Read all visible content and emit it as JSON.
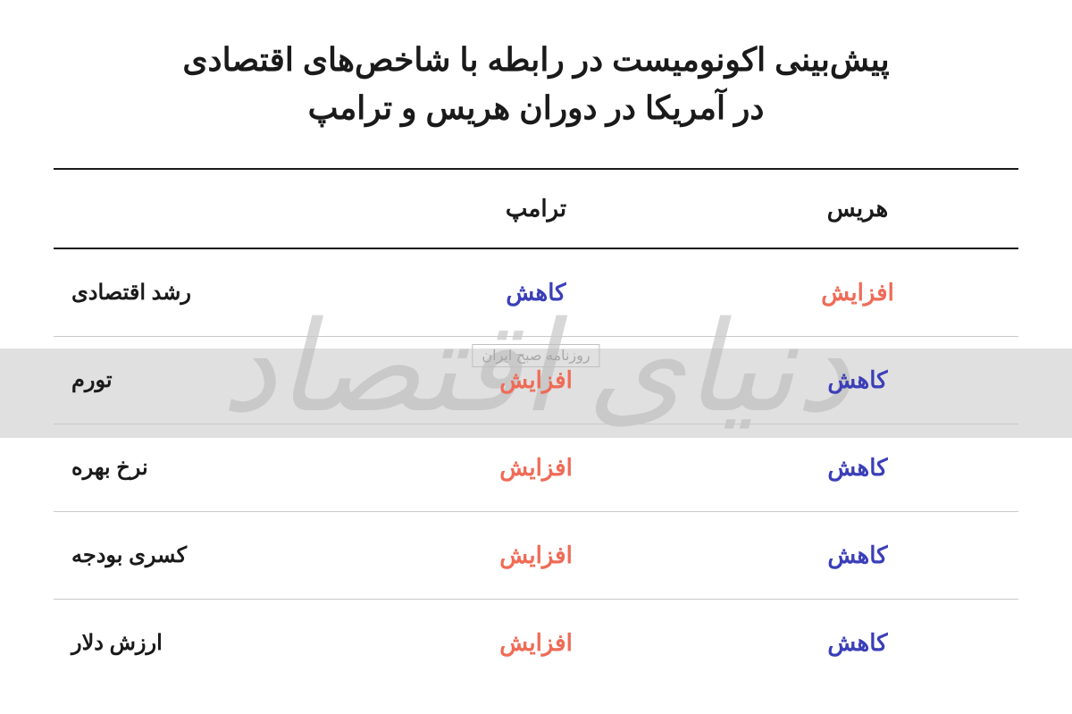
{
  "title_line1": "پیش‌بینی اکونومیست در رابطه با شاخص‌های اقتصادی",
  "title_line2": "در آمریکا در دوران هریس و ترامپ",
  "headers": {
    "harris": "هریس",
    "trump": "ترامپ",
    "label": ""
  },
  "value_labels": {
    "increase": "افزایش",
    "decrease": "کاهش"
  },
  "colors": {
    "increase": "#ef6b57",
    "decrease": "#3b3fb8",
    "text": "#1a1a1a",
    "border_thick": "#1a1a1a",
    "border_thin": "#c9c9c9",
    "watermark_bg": "#e0e0e0",
    "watermark_text": "#b8b8b8",
    "background": "#ffffff"
  },
  "typography": {
    "title_fontsize": 36,
    "header_fontsize": 26,
    "cell_fontsize": 26,
    "label_fontsize": 24,
    "weight": 900
  },
  "rows": [
    {
      "label": "رشد اقتصادی",
      "harris": "increase",
      "trump": "decrease"
    },
    {
      "label": "تورم",
      "harris": "decrease",
      "trump": "increase"
    },
    {
      "label": "نرخ بهره",
      "harris": "decrease",
      "trump": "increase"
    },
    {
      "label": "کسری بودجه",
      "harris": "decrease",
      "trump": "increase"
    },
    {
      "label": "ارزش دلار",
      "harris": "decrease",
      "trump": "increase"
    }
  ],
  "watermark": {
    "big": "دنیای اقتصاد",
    "small": "روزنامه صبح ایران"
  }
}
